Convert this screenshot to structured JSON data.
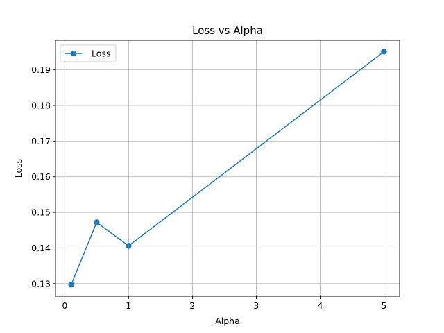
{
  "chart_data": {
    "type": "line",
    "title": "Loss vs Alpha",
    "xlabel": "Alpha",
    "ylabel": "Loss",
    "xlim": [
      -0.145,
      5.245
    ],
    "ylim": [
      0.12646,
      0.1983
    ],
    "xticks": [
      0,
      1,
      2,
      3,
      4,
      5
    ],
    "yticks": [
      0.13,
      0.14,
      0.15,
      0.16,
      0.17,
      0.18,
      0.19
    ],
    "grid": true,
    "legend": {
      "placement": "upper-left"
    },
    "series": [
      {
        "name": "Loss",
        "color": "#1f77b4",
        "marker": "circle",
        "x": [
          0.1,
          0.5,
          1,
          5
        ],
        "y": [
          0.1297,
          0.1472,
          0.1406,
          0.1951
        ]
      }
    ]
  }
}
